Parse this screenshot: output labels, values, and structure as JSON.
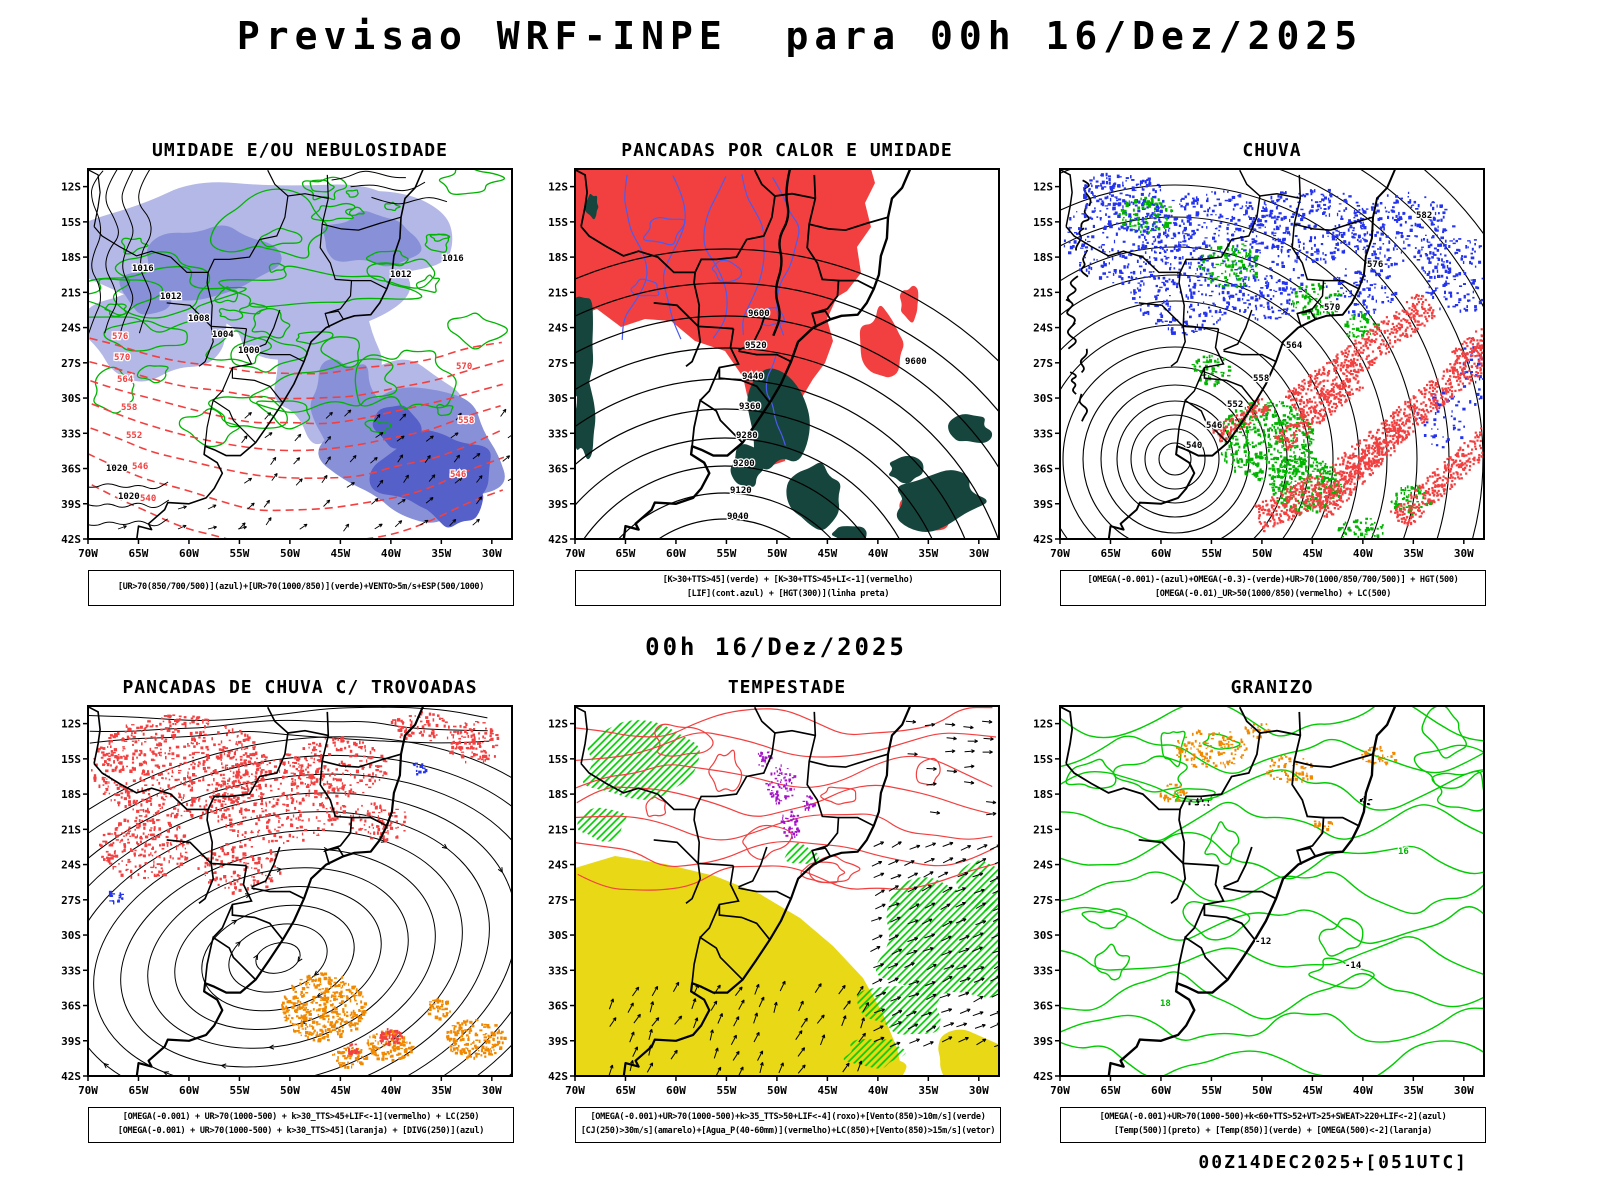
{
  "page": {
    "title": "Previsao WRF-INPE  para 00h 16/Dez/2025",
    "mid_caption": "00h 16/Dez/2025",
    "footer": "00Z14DEC2025+[051UTC]"
  },
  "axes": {
    "lat_labels": [
      "12S",
      "15S",
      "18S",
      "21S",
      "24S",
      "27S",
      "30S",
      "33S",
      "36S",
      "39S",
      "42S"
    ],
    "lon_labels": [
      "70W",
      "65W",
      "60W",
      "55W",
      "50W",
      "45W",
      "40W",
      "35W",
      "30W"
    ]
  },
  "panels": [
    {
      "id": "umidade",
      "title": "UMIDADE E/OU NEBULOSIDADE",
      "caption_lines": [
        "[UR>70(850/700/500)](azul)+[UR>70(1000/850)](verde)+VENTO>5m/s+ESP(500/1000)"
      ],
      "contour_labels": {
        "red": [
          "540",
          "546",
          "552",
          "558",
          "564",
          "570",
          "576"
        ],
        "black": [
          "1000",
          "1004",
          "1008",
          "1012",
          "1016",
          "1020"
        ]
      }
    },
    {
      "id": "pancadas-calor",
      "title": "PANCADAS POR CALOR E UMIDADE",
      "caption_lines": [
        "[K>30+TTS>45](verde) + [K>30+TTS>45+LI<-1](vermelho)",
        "[LIF](cont.azul) + [HGT(300)](linha preta)"
      ],
      "contour_labels": {
        "black": [
          "9040",
          "9120",
          "9200",
          "9280",
          "9360",
          "9440",
          "9520",
          "9600"
        ]
      }
    },
    {
      "id": "chuva",
      "title": "CHUVA",
      "caption_lines": [
        "[OMEGA(-0.001)-(azul)+OMEGA(-0.3)-(verde)+UR>70(1000/850/700/500)] + HGT(500)",
        "[OMEGA(-0.01)_UR>50(1000/850)(vermelho) + LC(500)"
      ],
      "contour_labels": {
        "black": [
          "540",
          "546",
          "552",
          "558",
          "564",
          "570",
          "576",
          "582"
        ]
      }
    },
    {
      "id": "trovoadas",
      "title": "PANCADAS DE CHUVA C/ TROVOADAS",
      "caption_lines": [
        "[OMEGA(-0.001) + UR>70(1000-500) + k>30_TTS>45+LIF<-1](vermelho) + LC(250)",
        "[OMEGA(-0.001) + UR>70(1000-500) + k>30_TTS>45](laranja) + [DIVG(250)](azul)"
      ]
    },
    {
      "id": "tempestade",
      "title": "TEMPESTADE",
      "caption_lines": [
        "[OMEGA(-0.001)+UR>70(1000-500)+k>35_TTS>50+LIF<-4](roxo)+[Vento(850)>10m/s](verde)",
        "[CJ(250)>30m/s](amarelo)+[Agua_P(40-60mm)](vermelho)+LC(850)+[Vento(850)>15m/s](vetor)"
      ]
    },
    {
      "id": "granizo",
      "title": "GRANIZO",
      "caption_lines": [
        "[OMEGA(-0.001)+UR>70(1000-500)+k<60+TTS>52+VT>25+SWEAT>220+LIF<-2](azul)",
        "[Temp(500)](preto) + [Temp(850)](verde) + [OMEGA(500)<-2](laranja)"
      ],
      "contour_labels": {
        "black": [
          "-12",
          "-14"
        ],
        "green": [
          "18",
          "16"
        ]
      }
    }
  ],
  "colors": {
    "green_contour": "#00b400",
    "green_bright": "#00cc00",
    "red": "#f24040",
    "dark_teal": "#16453d",
    "blue_speckle": "#2333ee",
    "lavender": "#b4b8e6",
    "mid_blue": "#8890d8",
    "deep_blue": "#5560c8",
    "orange": "#f08900",
    "yellow": "#e8d816",
    "purple": "#a512c9",
    "blue_contour": "#4b5bf0"
  }
}
